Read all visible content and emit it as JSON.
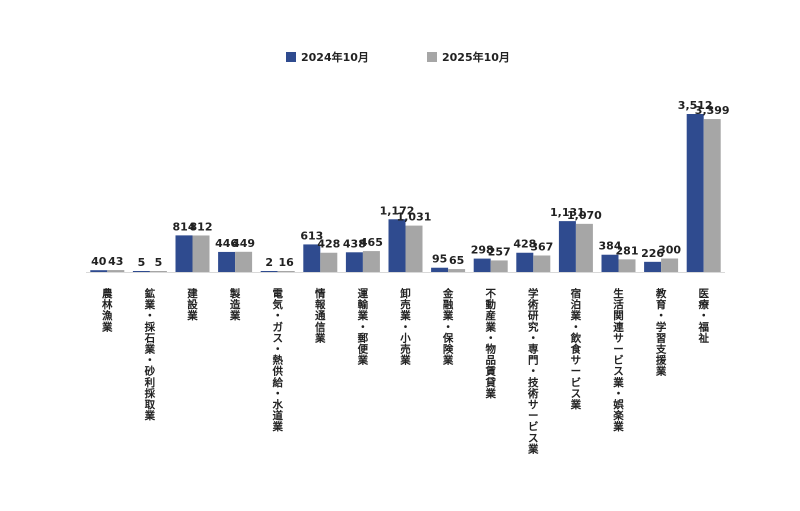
{
  "chart_data": {
    "type": "bar",
    "categories": [
      "農林漁業",
      "鉱業・採石業・砂利採取業",
      "建設業",
      "製造業",
      "電気・ガス・熱供給・水道業",
      "情報通信業",
      "運輸業・郵便業",
      "卸売業・小売業",
      "金融業・保険業",
      "不動産業・物品賃貸業",
      "学術研究・専門・技術サービス業",
      "宿泊業・飲食サービス業",
      "生活関連サービス業・娯楽業",
      "教育・学習支援業",
      "医療・福祉"
    ],
    "series": [
      {
        "name": "2024年10月",
        "values": [
          40,
          5,
          814,
          446,
          2,
          613,
          438,
          1172,
          95,
          298,
          428,
          1131,
          384,
          226,
          3512
        ],
        "labels": [
          "40",
          "5",
          "814",
          "446",
          "2",
          "613",
          "438",
          "1,172",
          "95",
          "298",
          "428",
          "1,131",
          "384",
          "226",
          "3,512"
        ],
        "color": "#2f4b8f"
      },
      {
        "name": "2025年10月",
        "values": [
          43,
          5,
          812,
          449,
          16,
          428,
          465,
          1031,
          65,
          257,
          367,
          1070,
          281,
          300,
          3399
        ],
        "labels": [
          "43",
          "5",
          "812",
          "449",
          "16",
          "428",
          "465",
          "1,031",
          "65",
          "257",
          "367",
          "1,070",
          "281",
          "300",
          "3,399"
        ],
        "color": "#a6a6a6"
      }
    ],
    "ylim": [
      0,
      3512
    ],
    "grid": false,
    "legend_position": "top-center",
    "baseline_color": "#d9d9d9"
  }
}
